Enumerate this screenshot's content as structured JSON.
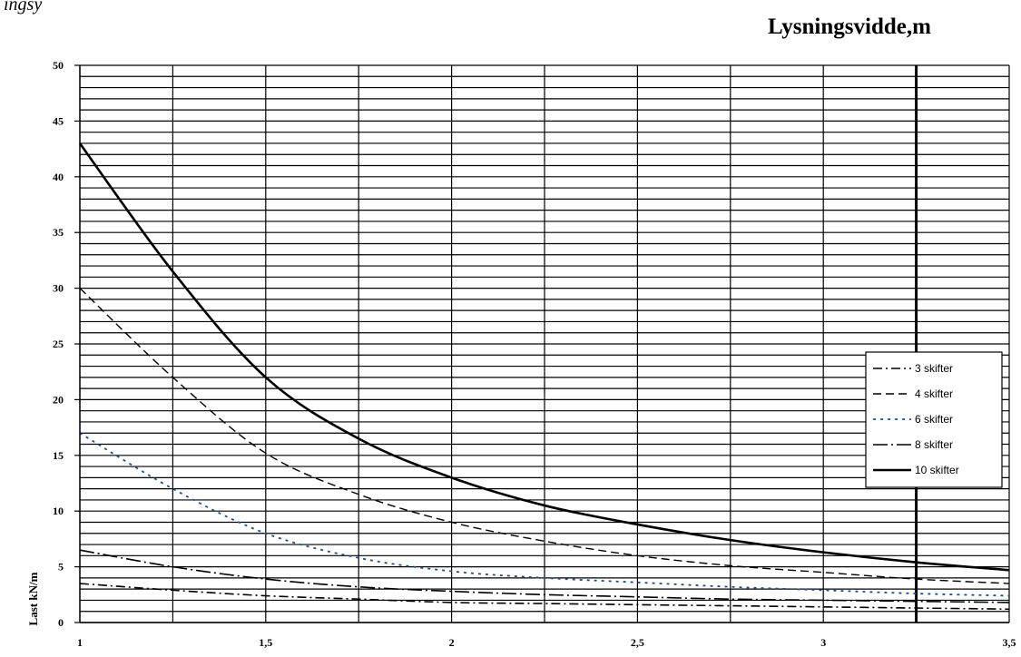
{
  "page": {
    "top_fragment": "ingsy",
    "x_axis_title": "Lysningsvidde,m"
  },
  "chart_data": {
    "type": "line",
    "xlabel": "Lysningsvidde,m",
    "ylabel": "Last kN/m",
    "xlim": [
      1,
      3.5
    ],
    "ylim": [
      0,
      50
    ],
    "x_ticks": [
      "1",
      "1,5",
      "2",
      "2,5",
      "3",
      "3,5"
    ],
    "y_ticks": [
      "0",
      "5",
      "10",
      "15",
      "20",
      "25",
      "30",
      "35",
      "40",
      "45",
      "50"
    ],
    "grid": true,
    "legend_position": "right",
    "reference_line_x": 3.25,
    "x": [
      1,
      1.25,
      1.5,
      1.75,
      2,
      2.25,
      2.5,
      2.75,
      3,
      3.25,
      3.5
    ],
    "series": [
      {
        "name": "3 skifter",
        "values": [
          3.5,
          2.9,
          2.4,
          2.1,
          1.8,
          1.7,
          1.6,
          1.5,
          1.4,
          1.3,
          1.2
        ],
        "color": "#000000",
        "dash": "10,4,2,4",
        "width": 1.6
      },
      {
        "name": "4 skifter",
        "values": [
          30.0,
          22.0,
          15.2,
          11.5,
          9.0,
          7.3,
          6.0,
          5.1,
          4.5,
          3.9,
          3.5
        ],
        "color": "#000000",
        "dash": "9,5",
        "width": 1.4
      },
      {
        "name": "6 skifter",
        "values": [
          17.0,
          12.0,
          8.0,
          5.8,
          4.6,
          4.0,
          3.6,
          3.2,
          2.9,
          2.6,
          2.4
        ],
        "color": "#1f4e8c",
        "dash": "3,5",
        "width": 1.8
      },
      {
        "name": "8 skifter",
        "values": [
          6.5,
          5.0,
          3.9,
          3.2,
          2.8,
          2.5,
          2.3,
          2.1,
          2.0,
          1.9,
          1.8
        ],
        "color": "#000000",
        "dash": "16,4,2,4",
        "width": 1.6
      },
      {
        "name": "10 skifter",
        "values": [
          43.0,
          31.5,
          22.0,
          16.5,
          13.0,
          10.5,
          8.8,
          7.4,
          6.3,
          5.4,
          4.7
        ],
        "color": "#000000",
        "dash": "",
        "width": 2.6
      }
    ]
  }
}
